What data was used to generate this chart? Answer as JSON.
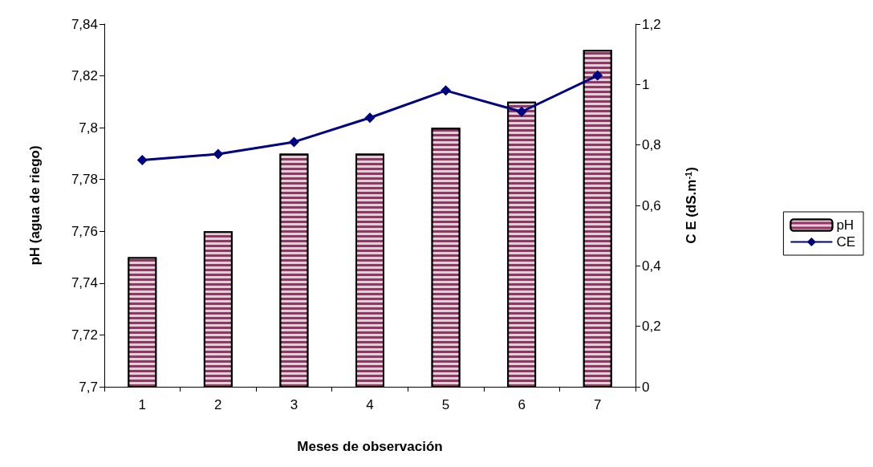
{
  "chart_data": {
    "type": "bar",
    "xlabel": "Meses de observación",
    "ylabel": "pH (agua de riego)",
    "y2label": "C E (dS.m$^{-1}$)",
    "categories": [
      "1",
      "2",
      "3",
      "4",
      "5",
      "6",
      "7"
    ],
    "series": [
      {
        "name": "pH",
        "color": "#993366",
        "values": [
          7.75,
          7.76,
          7.79,
          7.79,
          7.8,
          7.81,
          7.83
        ]
      },
      {
        "name": "CE",
        "type": "line",
        "axis": "y2",
        "color": "#000080",
        "marker": "diamond",
        "values": [
          0.75,
          0.77,
          0.81,
          0.89,
          0.98,
          0.91,
          1.03
        ]
      }
    ],
    "ylim": [
      7.7,
      7.84
    ],
    "yticks": [
      {
        "value": 7.7,
        "label": "7,7"
      },
      {
        "value": 7.72,
        "label": "7,72"
      },
      {
        "value": 7.74,
        "label": "7,74"
      },
      {
        "value": 7.76,
        "label": "7,76"
      },
      {
        "value": 7.78,
        "label": "7,78"
      },
      {
        "value": 7.8,
        "label": "7,8"
      },
      {
        "value": 7.82,
        "label": "7,82"
      },
      {
        "value": 7.84,
        "label": "7,84"
      }
    ],
    "y2lim": [
      0,
      1.2
    ],
    "y2ticks": [
      0,
      {
        "value": 0.2,
        "label": "0,2"
      },
      {
        "value": 0.4,
        "label": "0,4"
      },
      {
        "value": 0.6,
        "label": "0,6"
      },
      {
        "value": 0.8,
        "label": "0,8"
      },
      1,
      {
        "value": 1.2,
        "label": "1,2"
      }
    ],
    "grid": false,
    "legend": "right",
    "line_style": "solid"
  }
}
